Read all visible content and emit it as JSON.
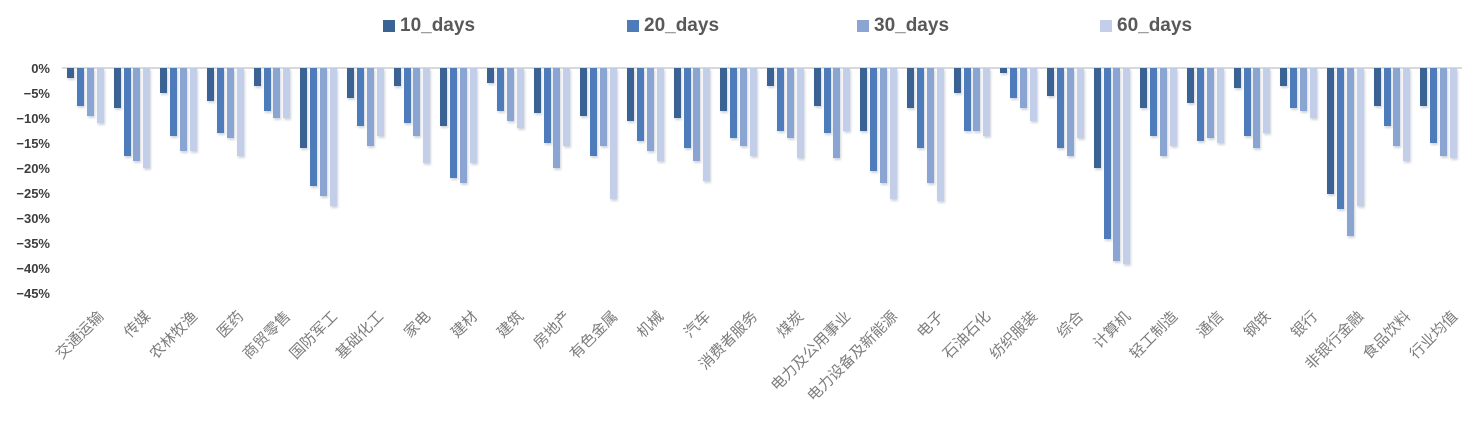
{
  "chart_data": {
    "type": "bar",
    "title": "",
    "xlabel": "",
    "ylabel": "",
    "unit": "%",
    "ylim": [
      -45,
      0
    ],
    "grid": false,
    "legend_position": "top",
    "baseline_color": "#d9d9d9",
    "y_ticks": [
      "0%",
      "−5%",
      "−10%",
      "−15%",
      "−20%",
      "−25%",
      "−30%",
      "−35%",
      "−40%",
      "−45%"
    ],
    "categories": [
      "交通运输",
      "传媒",
      "农林牧渔",
      "医药",
      "商贸零售",
      "国防军工",
      "基础化工",
      "家电",
      "建材",
      "建筑",
      "房地产",
      "有色金属",
      "机械",
      "汽车",
      "消费者服务",
      "煤炭",
      "电力及公用事业",
      "电力设备及新能源",
      "电子",
      "石油石化",
      "纺织服装",
      "综合",
      "计算机",
      "轻工制造",
      "通信",
      "钢铁",
      "银行",
      "非银行金融",
      "食品饮料",
      "行业均值"
    ],
    "series": [
      {
        "name": "10_days",
        "color": "#3a6394",
        "values": [
          -2,
          -8,
          -5,
          -6.5,
          -3.5,
          -16,
          -6,
          -3.5,
          -11.5,
          -3,
          -9,
          -9.5,
          -10.5,
          -10,
          -8.5,
          -3.5,
          -7.5,
          -12.5,
          -8,
          -5,
          -1,
          -5.5,
          -20,
          -8,
          -7,
          -4,
          -3.5,
          -25,
          -7.5,
          -7.5
        ]
      },
      {
        "name": "20_days",
        "color": "#4e7cbb",
        "values": [
          -7.5,
          -17.5,
          -13.5,
          -13,
          -8.5,
          -23.5,
          -11.5,
          -11,
          -22,
          -8.5,
          -15,
          -17.5,
          -14.5,
          -16,
          -14,
          -12.5,
          -13,
          -20.5,
          -16,
          -12.5,
          -6,
          -16,
          -34,
          -13.5,
          -14.5,
          -13.5,
          -8,
          -28,
          -11.5,
          -15
        ]
      },
      {
        "name": "30_days",
        "color": "#8aa5d2",
        "values": [
          -9.5,
          -18.5,
          -16.5,
          -14,
          -10,
          -25.5,
          -15.5,
          -13.5,
          -23,
          -10.5,
          -20,
          -15.5,
          -16.5,
          -18.5,
          -15.5,
          -14,
          -18,
          -23,
          -23,
          -12.5,
          -8,
          -17.5,
          -38.5,
          -17.5,
          -14,
          -16,
          -8.5,
          -33.5,
          -15.5,
          -17.5
        ]
      },
      {
        "name": "60_days",
        "color": "#c3cfe8",
        "values": [
          -11,
          -20,
          -16.5,
          -17.5,
          -10,
          -27.5,
          -13.5,
          -19,
          -19,
          -12,
          -15.5,
          -26,
          -18.5,
          -22.5,
          -17.5,
          -18,
          -12.5,
          -26,
          -26.5,
          -13.5,
          -10.5,
          -14,
          -39,
          -15.5,
          -15,
          -13,
          -10,
          -27.5,
          -18.5,
          -18
        ]
      }
    ]
  }
}
